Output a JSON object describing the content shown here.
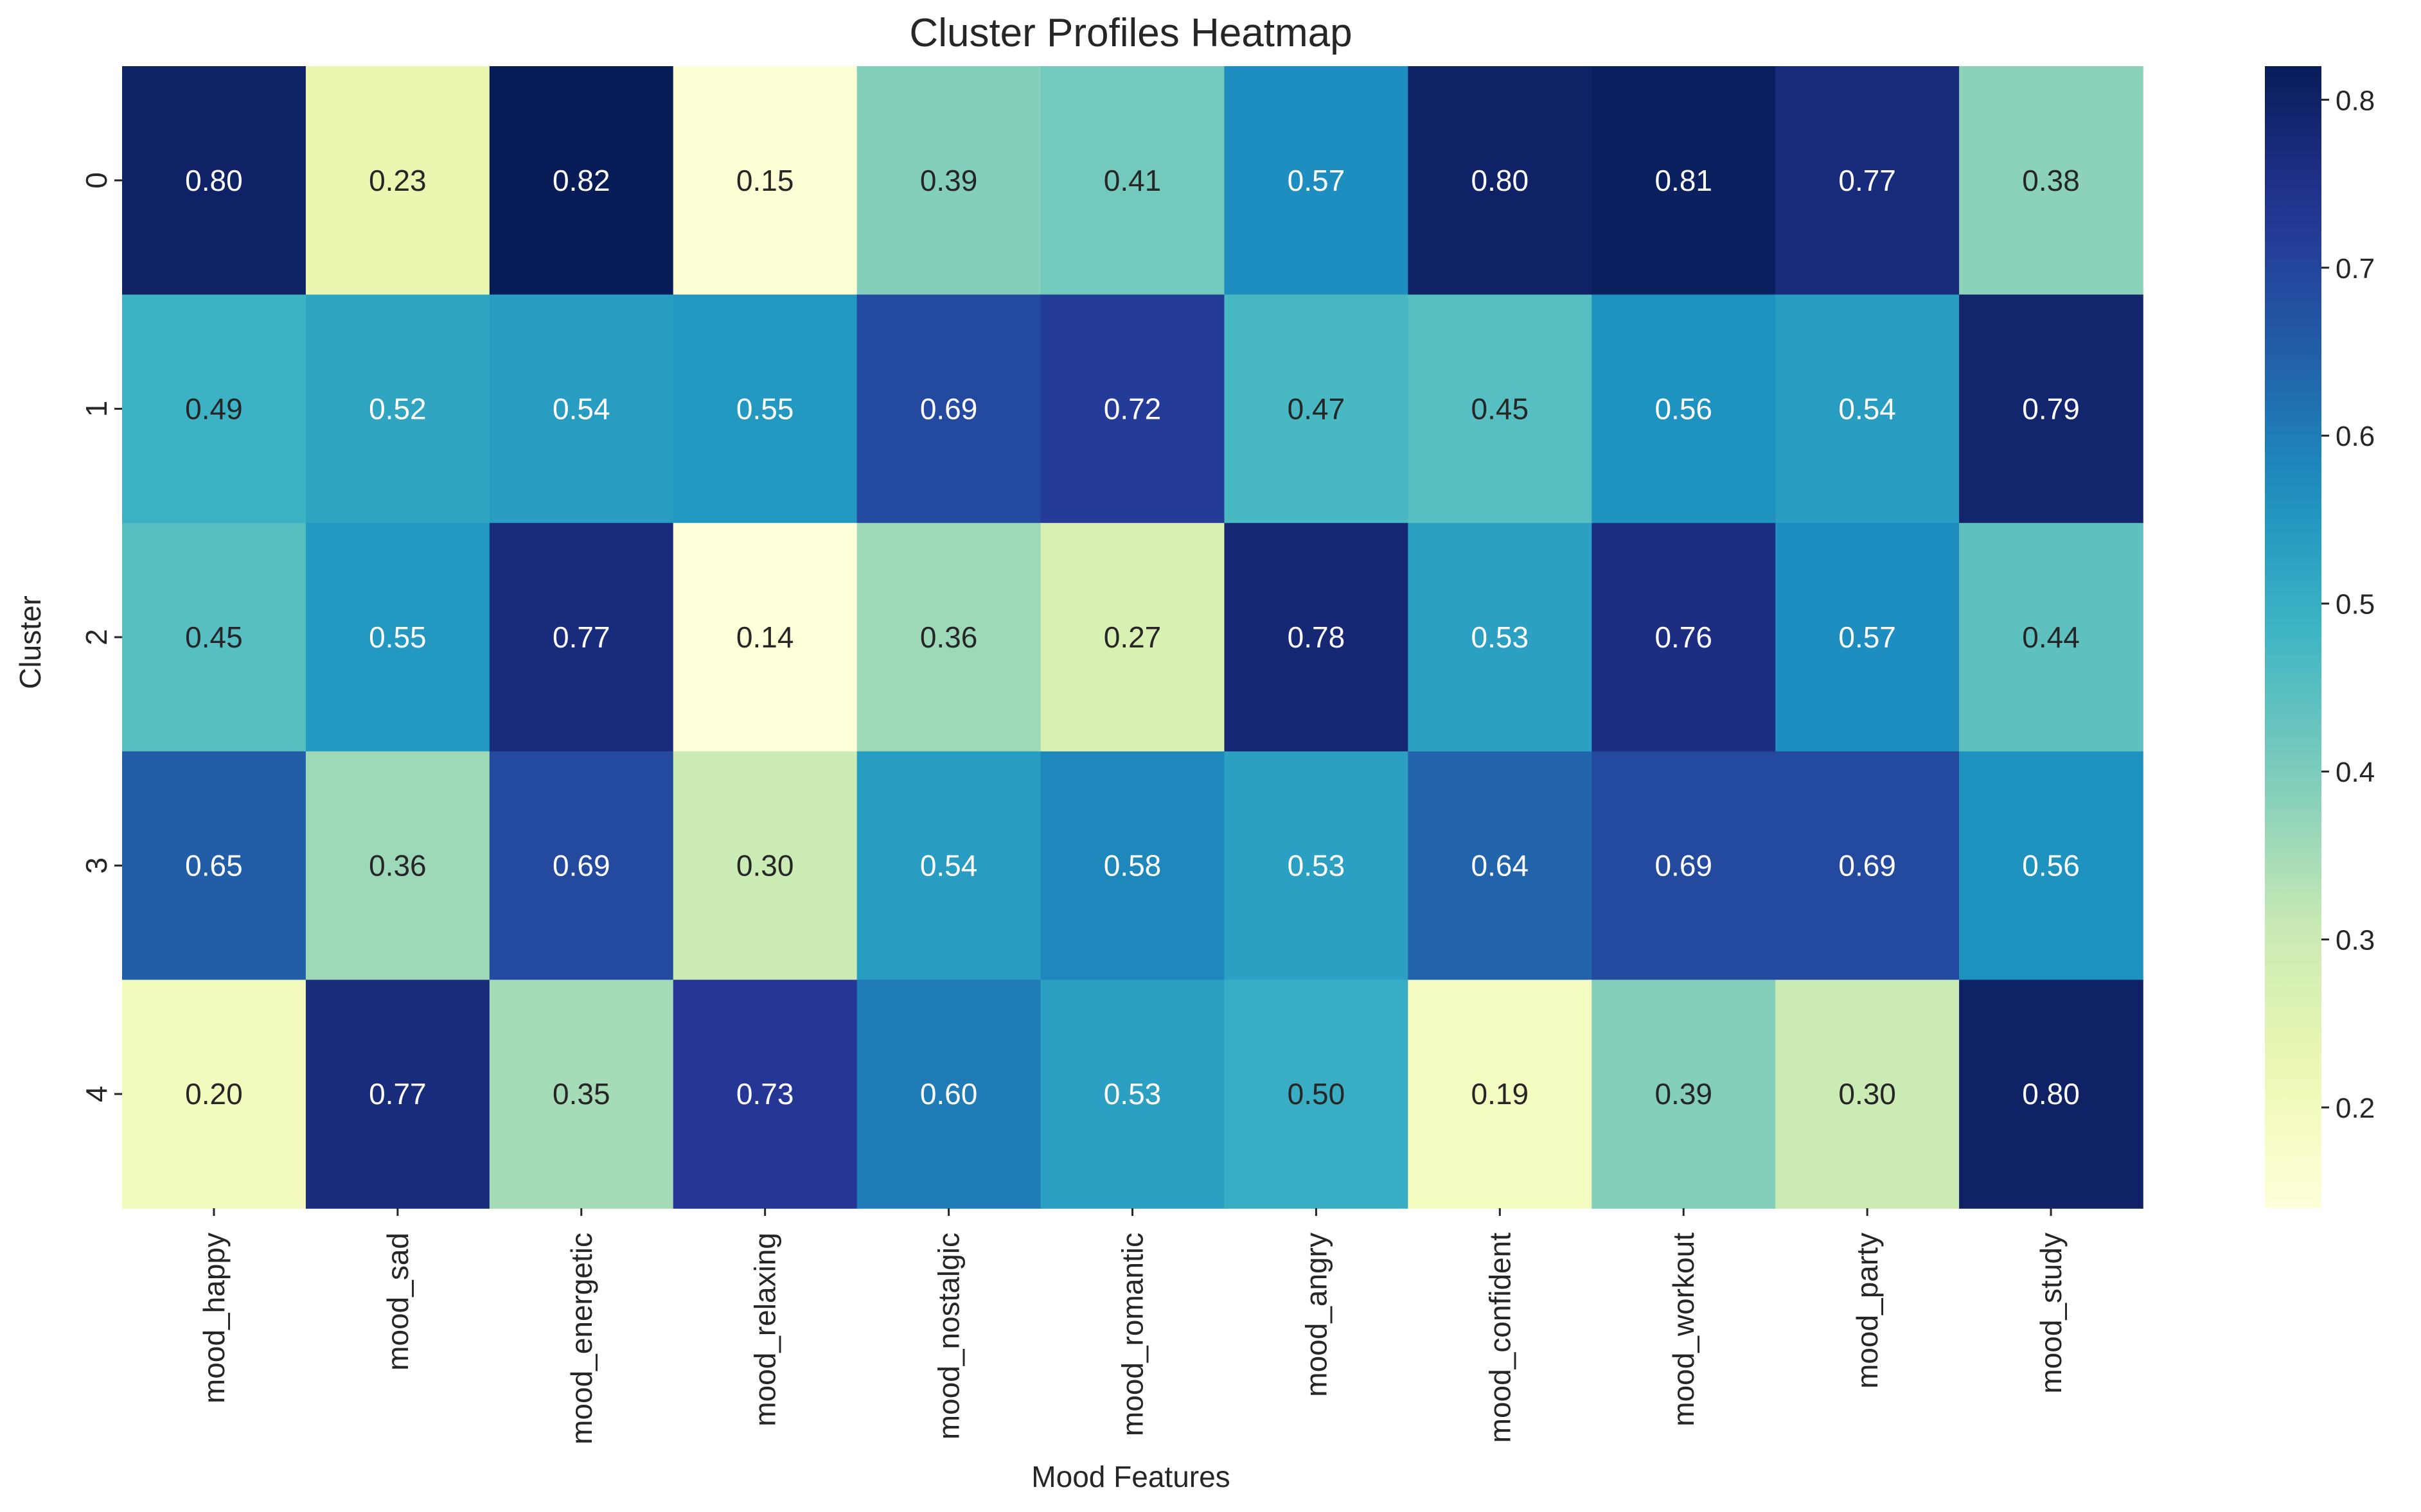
{
  "chart_data": {
    "type": "heatmap",
    "title": "Cluster Profiles Heatmap",
    "xlabel": "Mood Features",
    "ylabel": "Cluster",
    "x_categories": [
      "mood_happy",
      "mood_sad",
      "mood_energetic",
      "mood_relaxing",
      "mood_nostalgic",
      "mood_romantic",
      "mood_angry",
      "mood_confident",
      "mood_workout",
      "mood_party",
      "mood_study"
    ],
    "y_categories": [
      "0",
      "1",
      "2",
      "3",
      "4"
    ],
    "values": [
      [
        0.8,
        0.23,
        0.82,
        0.15,
        0.39,
        0.41,
        0.57,
        0.8,
        0.81,
        0.77,
        0.38
      ],
      [
        0.49,
        0.52,
        0.54,
        0.55,
        0.69,
        0.72,
        0.47,
        0.45,
        0.56,
        0.54,
        0.79
      ],
      [
        0.45,
        0.55,
        0.77,
        0.14,
        0.36,
        0.27,
        0.78,
        0.53,
        0.76,
        0.57,
        0.44
      ],
      [
        0.65,
        0.36,
        0.69,
        0.3,
        0.54,
        0.58,
        0.53,
        0.64,
        0.69,
        0.69,
        0.56
      ],
      [
        0.2,
        0.77,
        0.35,
        0.73,
        0.6,
        0.53,
        0.5,
        0.19,
        0.39,
        0.3,
        0.8
      ]
    ],
    "colormap": "YlGnBu",
    "vmin": 0.14,
    "vmax": 0.82,
    "colorbar_ticks": [
      0.2,
      0.3,
      0.4,
      0.5,
      0.6,
      0.7,
      0.8
    ],
    "annotation_format": "0.00",
    "grid": false,
    "legend": "colorbar-right"
  }
}
